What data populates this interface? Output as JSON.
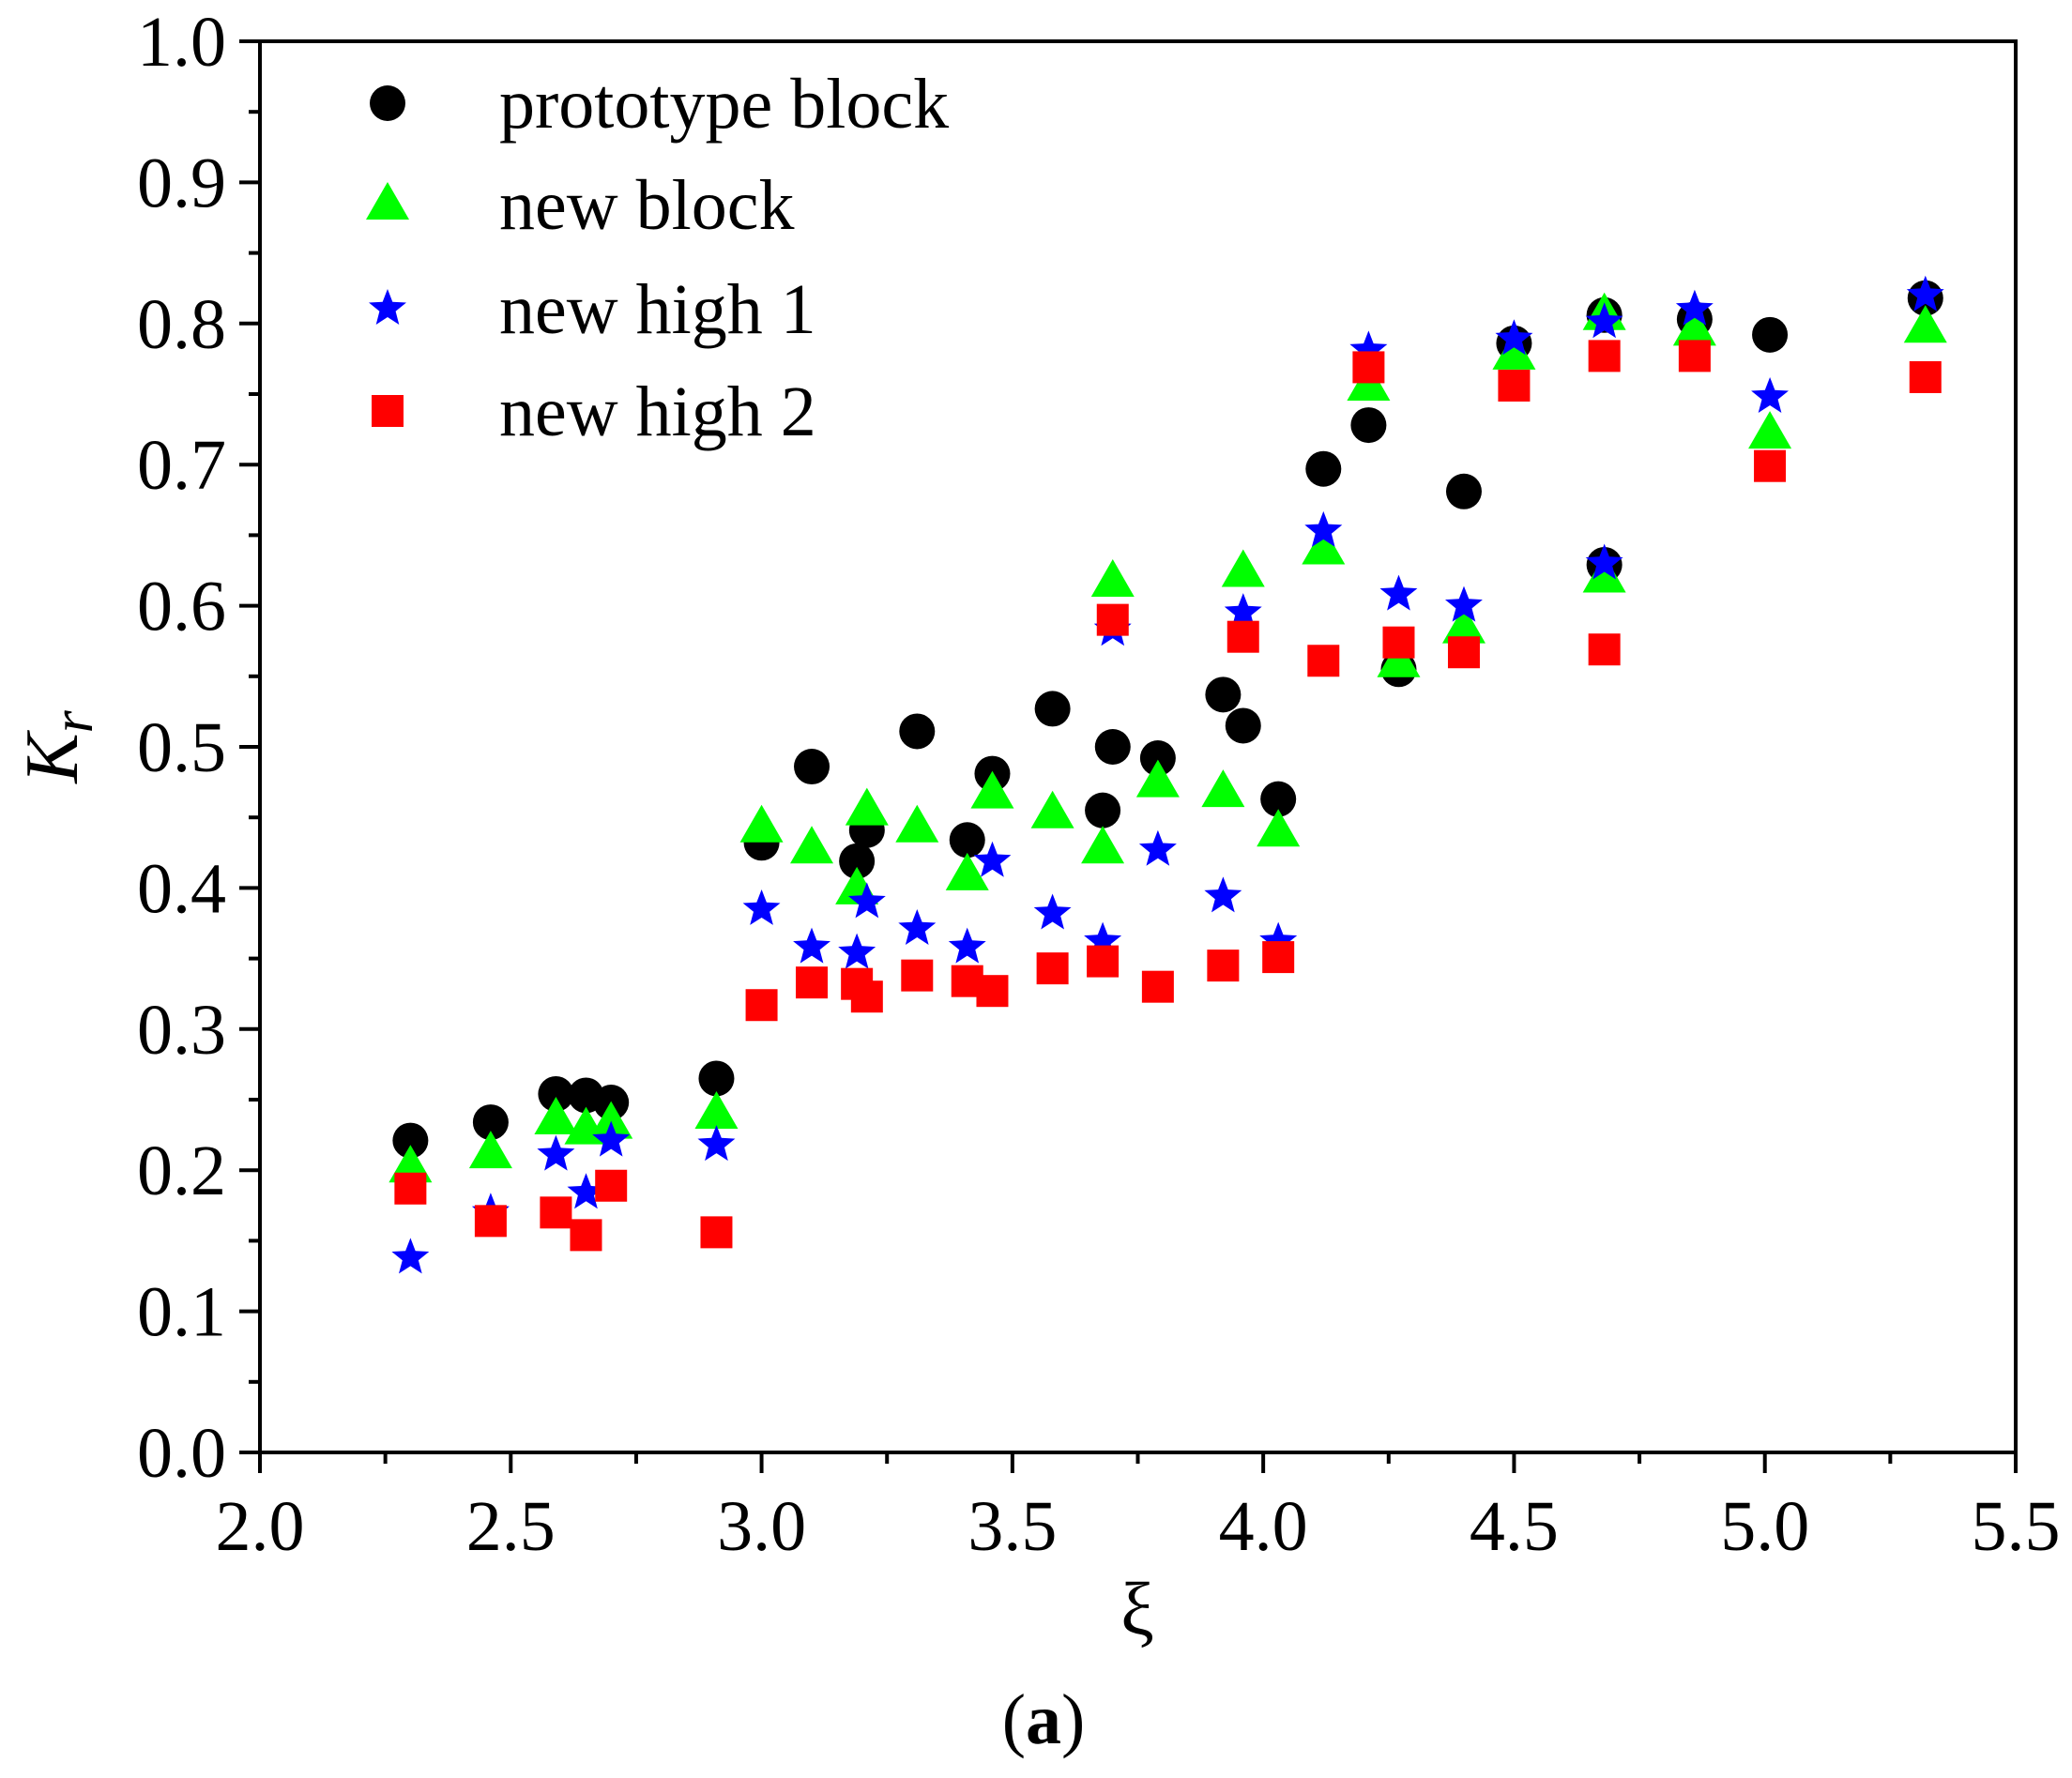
{
  "chart_data": {
    "type": "scatter",
    "title": "",
    "xlabel": "ξ",
    "ylabel_main": "K",
    "ylabel_sub": "r",
    "xlim": [
      2.0,
      5.5
    ],
    "ylim": [
      0.0,
      1.0
    ],
    "x_ticks": [
      "2.0",
      "2.5",
      "3.0",
      "3.5",
      "4.0",
      "4.5",
      "5.0",
      "5.5"
    ],
    "y_ticks": [
      "0.0",
      "0.1",
      "0.2",
      "0.3",
      "0.4",
      "0.5",
      "0.6",
      "0.7",
      "0.8",
      "0.9",
      "1.0"
    ],
    "grid": false,
    "legend_position": "top-left",
    "caption_open": "(",
    "caption_bold": "a",
    "caption_close": ")",
    "series": [
      {
        "name": "prototype block",
        "marker": "circle",
        "color": "#000000",
        "x": [
          2.3,
          2.46,
          2.59,
          2.65,
          2.7,
          2.91,
          3.0,
          3.1,
          3.19,
          3.21,
          3.31,
          3.41,
          3.46,
          3.58,
          3.68,
          3.7,
          3.79,
          3.92,
          3.96,
          4.03,
          4.12,
          4.21,
          4.27,
          4.4,
          4.5,
          4.68,
          4.68,
          4.86,
          5.01,
          5.32
        ],
        "y": [
          0.221,
          0.234,
          0.254,
          0.253,
          0.248,
          0.265,
          0.432,
          0.486,
          0.419,
          0.441,
          0.511,
          0.434,
          0.481,
          0.527,
          0.455,
          0.5,
          0.492,
          0.537,
          0.515,
          0.463,
          0.697,
          0.728,
          0.555,
          0.681,
          0.786,
          0.806,
          0.629,
          0.803,
          0.792,
          0.818
        ]
      },
      {
        "name": "new block",
        "marker": "triangle",
        "color": "#00ff00",
        "x": [
          2.3,
          2.46,
          2.59,
          2.65,
          2.7,
          2.91,
          3.0,
          3.1,
          3.19,
          3.21,
          3.31,
          3.41,
          3.46,
          3.58,
          3.68,
          3.7,
          3.79,
          3.92,
          3.96,
          4.03,
          4.12,
          4.21,
          4.27,
          4.4,
          4.5,
          4.68,
          4.68,
          4.86,
          5.01,
          5.32
        ],
        "y": [
          0.202,
          0.212,
          0.236,
          0.229,
          0.233,
          0.24,
          0.443,
          0.428,
          0.399,
          0.455,
          0.443,
          0.409,
          0.467,
          0.453,
          0.428,
          0.617,
          0.475,
          0.468,
          0.624,
          0.44,
          0.64,
          0.756,
          0.56,
          0.584,
          0.778,
          0.806,
          0.62,
          0.795,
          0.722,
          0.797
        ]
      },
      {
        "name": "new high 1",
        "marker": "star",
        "color": "#0000ff",
        "x": [
          2.3,
          2.46,
          2.59,
          2.65,
          2.7,
          2.91,
          3.0,
          3.1,
          3.19,
          3.21,
          3.31,
          3.41,
          3.46,
          3.58,
          3.68,
          3.7,
          3.79,
          3.92,
          3.96,
          4.03,
          4.12,
          4.21,
          4.27,
          4.4,
          4.5,
          4.68,
          4.68,
          4.86,
          5.01,
          5.32
        ],
        "y": [
          0.138,
          0.17,
          0.211,
          0.184,
          0.221,
          0.218,
          0.385,
          0.358,
          0.354,
          0.39,
          0.371,
          0.358,
          0.419,
          0.382,
          0.362,
          0.583,
          0.427,
          0.394,
          0.595,
          0.362,
          0.653,
          0.781,
          0.608,
          0.6,
          0.789,
          0.801,
          0.63,
          0.81,
          0.748,
          0.82
        ]
      },
      {
        "name": "new high 2",
        "marker": "square",
        "color": "#ff0000",
        "x": [
          2.3,
          2.46,
          2.59,
          2.65,
          2.7,
          2.91,
          3.0,
          3.1,
          3.19,
          3.21,
          3.31,
          3.41,
          3.46,
          3.58,
          3.68,
          3.7,
          3.79,
          3.92,
          3.96,
          4.03,
          4.12,
          4.21,
          4.27,
          4.4,
          4.5,
          4.68,
          4.68,
          4.86,
          5.01,
          5.32
        ],
        "y": [
          0.187,
          0.164,
          0.17,
          0.154,
          0.189,
          0.156,
          0.317,
          0.333,
          0.332,
          0.323,
          0.338,
          0.334,
          0.327,
          0.343,
          0.348,
          0.59,
          0.33,
          0.345,
          0.578,
          0.351,
          0.561,
          0.769,
          0.574,
          0.567,
          0.756,
          0.777,
          0.569,
          0.777,
          0.699,
          0.762
        ]
      }
    ]
  }
}
